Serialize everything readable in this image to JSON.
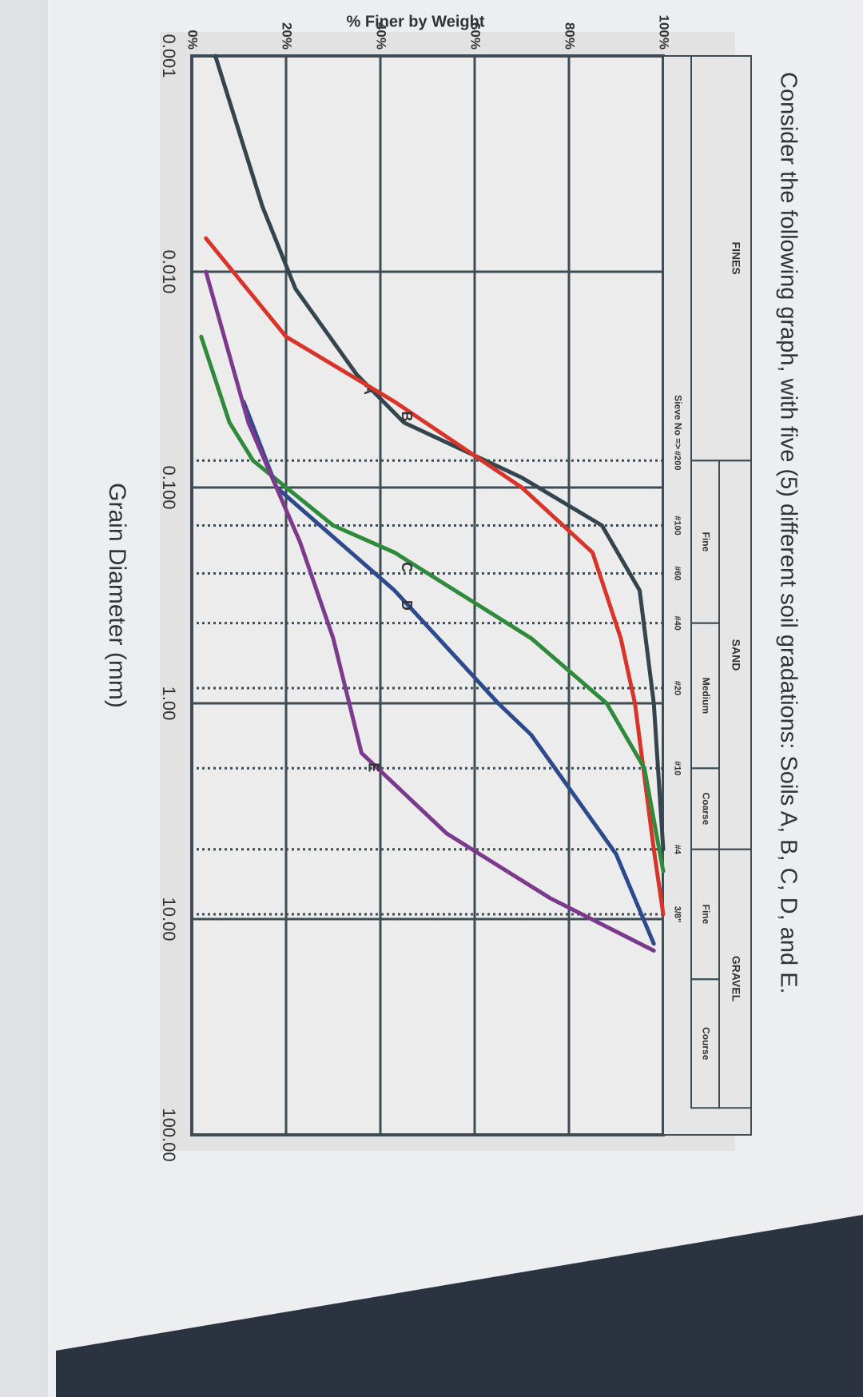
{
  "chart_data": {
    "type": "line",
    "title": "Consider the following graph, with five (5) different soil gradations: Soils A, B, C, D, and E.",
    "x_label": "Grain Diameter (mm)",
    "y_label": "% Finer by Weight",
    "xscale": "log",
    "xlim": [
      0.001,
      100
    ],
    "ylim": [
      0,
      100
    ],
    "xticks": [
      0.001,
      {
        "value": 0.01,
        "label": "0.010"
      },
      {
        "value": 0.1,
        "label": "0.100"
      },
      {
        "value": 1,
        "label": "1.00"
      },
      {
        "value": 10,
        "label": "10.00"
      },
      {
        "value": 100,
        "label": "100.00"
      }
    ],
    "yticks": [
      {
        "value": 0,
        "label": "0%"
      },
      {
        "value": 20,
        "label": "20%"
      },
      {
        "value": 40,
        "label": "40%"
      },
      {
        "value": 60,
        "label": "60%"
      },
      {
        "value": 80,
        "label": "80%"
      },
      {
        "value": 100,
        "label": "100%"
      }
    ],
    "grid": true,
    "soil_classes": [
      {
        "label": "FINES",
        "xrange": [
          0.001,
          0.075
        ]
      },
      {
        "label": "SAND",
        "subclasses": [
          {
            "label": "Fine",
            "xrange": [
              0.075,
              0.425
            ]
          },
          {
            "label": "Medium",
            "xrange": [
              0.425,
              2
            ]
          },
          {
            "label": "Coarse",
            "xrange": [
              2,
              4.75
            ]
          }
        ]
      },
      {
        "label": "GRAVEL",
        "subclasses": [
          {
            "label": "Fine",
            "xrange": [
              4.75,
              19
            ]
          },
          {
            "label": "Course",
            "xrange": [
              19,
              75
            ]
          }
        ]
      }
    ],
    "sieve_label": "Sieve No =>",
    "sieves": [
      {
        "label": "#200",
        "value": 0.075
      },
      {
        "label": "#100",
        "value": 0.15
      },
      {
        "label": "#60",
        "value": 0.25
      },
      {
        "label": "#40",
        "value": 0.425
      },
      {
        "label": "#20",
        "value": 0.85
      },
      {
        "label": "#10",
        "value": 2
      },
      {
        "label": "#4",
        "value": 4.75
      },
      {
        "label": "3/8\"",
        "value": 9.5
      }
    ],
    "series": [
      {
        "name": "A",
        "color": "#34454d",
        "x": [
          0.001,
          0.005,
          0.012,
          0.03,
          0.05,
          0.09,
          0.15,
          0.3,
          1,
          4.75
        ],
        "values": [
          5,
          15,
          22,
          35,
          45,
          70,
          87,
          95,
          98,
          100
        ]
      },
      {
        "name": "B",
        "color": "#d8342a",
        "x": [
          0.007,
          0.02,
          0.04,
          0.1,
          0.2,
          0.5,
          1,
          4.75,
          9.5
        ],
        "values": [
          3,
          20,
          43,
          70,
          85,
          91,
          94,
          98,
          100
        ]
      },
      {
        "name": "C",
        "color": "#2f8a3c",
        "x": [
          0.02,
          0.05,
          0.075,
          0.15,
          0.2,
          0.5,
          1,
          2,
          6
        ],
        "values": [
          2,
          8,
          13,
          30,
          43,
          72,
          88,
          96,
          100
        ]
      },
      {
        "name": "D",
        "color": "#2c4a8c",
        "x": [
          0.04,
          0.1,
          0.3,
          1,
          1.4,
          5,
          13
        ],
        "values": [
          11,
          18,
          43,
          65,
          72,
          90,
          98
        ]
      },
      {
        "name": "E",
        "color": "#7b3a8c",
        "x": [
          0.01,
          0.05,
          0.18,
          0.5,
          1.7,
          4,
          8,
          14
        ],
        "values": [
          3,
          12,
          23,
          30,
          36,
          54,
          76,
          98
        ]
      }
    ]
  }
}
